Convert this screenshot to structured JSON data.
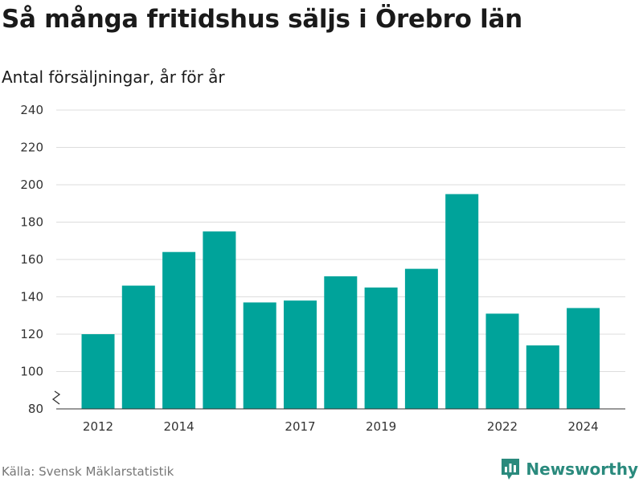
{
  "header": {
    "title": "Så många fritidshus säljs i Örebro län",
    "subtitle": "Antal försäljningar, år för år"
  },
  "footer": {
    "source": "Källa: Svensk Mäklarstatistik",
    "brand": "Newsworthy",
    "brand_icon": "newsworthy-logo-icon"
  },
  "colors": {
    "bar": "#00a39a",
    "brand": "#2a8a7d"
  },
  "chart_data": {
    "type": "bar",
    "title": "Så många fritidshus säljs i Örebro län",
    "subtitle": "Antal försäljningar, år för år",
    "xlabel": "",
    "ylabel": "",
    "categories": [
      "2012",
      "2013",
      "2014",
      "2015",
      "2016",
      "2017",
      "2018",
      "2019",
      "2020",
      "2021",
      "2022",
      "2023",
      "2024"
    ],
    "x_tick_labels": [
      "2012",
      "2014",
      "2017",
      "2019",
      "2022",
      "2024"
    ],
    "values": [
      120,
      146,
      164,
      175,
      137,
      138,
      151,
      145,
      155,
      195,
      131,
      114,
      134
    ],
    "ylim": [
      80,
      240
    ],
    "y_ticks": [
      80,
      100,
      120,
      140,
      160,
      180,
      200,
      220,
      240
    ],
    "y_axis_break": true,
    "grid": true,
    "legend": "none"
  }
}
